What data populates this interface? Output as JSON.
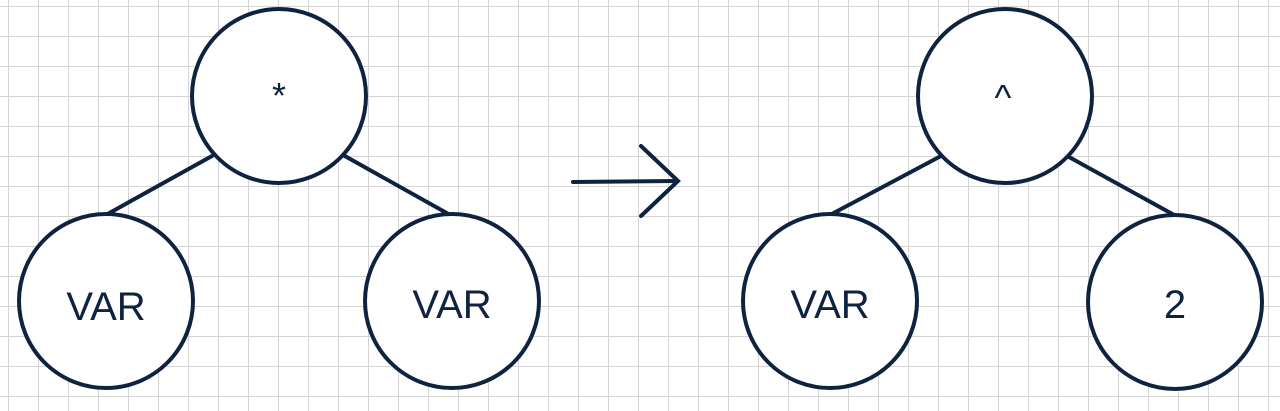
{
  "before_tree": {
    "root": {
      "label": "*"
    },
    "left_child": {
      "label": "VAR"
    },
    "right_child": {
      "label": "VAR"
    }
  },
  "after_tree": {
    "root": {
      "label": "^"
    },
    "left_child": {
      "label": "VAR"
    },
    "right_child": {
      "label": "2"
    }
  },
  "colors": {
    "stroke": "#0f2340",
    "grid": "#d4d4d4",
    "background": "#ffffff"
  },
  "icons": {
    "transform_arrow": "right-arrow-icon"
  }
}
